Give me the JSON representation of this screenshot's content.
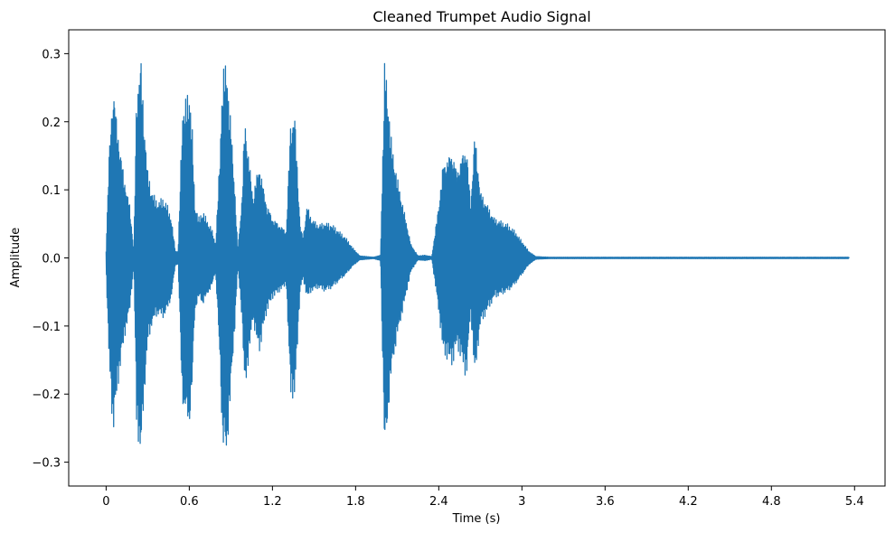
{
  "chart_data": {
    "type": "line",
    "title": "Cleaned Trumpet Audio Signal",
    "xlabel": "Time (s)",
    "ylabel": "Amplitude",
    "xlim": [
      -0.27,
      5.62
    ],
    "ylim": [
      -0.335,
      0.335
    ],
    "xticks": [
      0,
      0.6,
      1.2,
      1.8,
      2.4,
      3,
      3.6,
      4.2,
      4.8,
      5.4
    ],
    "xtick_labels": [
      "0",
      "0.6",
      "1.2",
      "1.8",
      "2.4",
      "3",
      "3.6",
      "4.2",
      "4.8",
      "5.4"
    ],
    "yticks": [
      -0.3,
      -0.2,
      -0.1,
      0.0,
      0.1,
      0.2,
      0.3
    ],
    "ytick_labels": [
      "−0.3",
      "−0.2",
      "−0.1",
      "0.0",
      "0.1",
      "0.2",
      "0.3"
    ],
    "grid": false,
    "color": "#1f77b4",
    "series": [
      {
        "envelope": {
          "time": [
            0.0,
            0.02,
            0.05,
            0.08,
            0.11,
            0.14,
            0.17,
            0.2,
            0.22,
            0.25,
            0.27,
            0.3,
            0.33,
            0.36,
            0.38,
            0.41,
            0.44,
            0.47,
            0.5,
            0.52,
            0.55,
            0.6,
            0.62,
            0.64,
            0.67,
            0.7,
            0.73,
            0.76,
            0.79,
            0.82,
            0.84,
            0.87,
            0.9,
            0.93,
            0.95,
            0.98,
            1.0,
            1.03,
            1.06,
            1.08,
            1.11,
            1.13,
            1.16,
            1.2,
            1.25,
            1.3,
            1.33,
            1.36,
            1.4,
            1.42,
            1.45,
            1.48,
            1.53,
            1.58,
            1.63,
            1.68,
            1.73,
            1.78,
            1.83,
            1.88,
            1.93,
            1.98,
            2.01,
            2.03,
            2.06,
            2.1,
            2.15,
            2.2,
            2.25,
            2.3,
            2.35,
            2.4,
            2.43,
            2.46,
            2.5,
            2.53,
            2.56,
            2.6,
            2.63,
            2.66,
            2.7,
            2.75,
            2.8,
            2.85,
            2.9,
            2.95,
            3.0,
            3.05,
            3.1,
            3.2,
            5.36
          ],
          "upper": [
            0.012,
            0.15,
            0.262,
            0.2,
            0.15,
            0.11,
            0.08,
            0.01,
            0.25,
            0.302,
            0.22,
            0.13,
            0.1,
            0.088,
            0.085,
            0.09,
            0.08,
            0.06,
            0.01,
            0.01,
            0.22,
            0.251,
            0.2,
            0.08,
            0.06,
            0.07,
            0.055,
            0.045,
            0.02,
            0.15,
            0.28,
            0.29,
            0.2,
            0.1,
            0.01,
            0.09,
            0.21,
            0.15,
            0.09,
            0.12,
            0.14,
            0.11,
            0.08,
            0.06,
            0.05,
            0.04,
            0.2,
            0.22,
            0.05,
            0.03,
            0.08,
            0.06,
            0.05,
            0.053,
            0.05,
            0.04,
            0.03,
            0.015,
            0.003,
            0.002,
            0.001,
            0.004,
            0.295,
            0.25,
            0.17,
            0.12,
            0.07,
            0.02,
            0.003,
            0.004,
            0.002,
            0.08,
            0.14,
            0.15,
            0.16,
            0.13,
            0.15,
            0.17,
            0.08,
            0.19,
            0.1,
            0.08,
            0.06,
            0.055,
            0.05,
            0.04,
            0.025,
            0.01,
            0.002,
            0.001,
            0.001
          ],
          "lower": [
            -0.015,
            -0.15,
            -0.262,
            -0.2,
            -0.15,
            -0.11,
            -0.08,
            -0.01,
            -0.25,
            -0.302,
            -0.22,
            -0.13,
            -0.1,
            -0.088,
            -0.085,
            -0.09,
            -0.08,
            -0.06,
            -0.01,
            -0.01,
            -0.22,
            -0.255,
            -0.2,
            -0.08,
            -0.06,
            -0.07,
            -0.055,
            -0.045,
            -0.02,
            -0.15,
            -0.28,
            -0.3,
            -0.2,
            -0.1,
            -0.01,
            -0.09,
            -0.2,
            -0.15,
            -0.09,
            -0.12,
            -0.14,
            -0.11,
            -0.08,
            -0.06,
            -0.05,
            -0.04,
            -0.2,
            -0.213,
            -0.05,
            -0.03,
            -0.06,
            -0.05,
            -0.045,
            -0.05,
            -0.045,
            -0.035,
            -0.025,
            -0.012,
            -0.003,
            -0.002,
            -0.001,
            -0.004,
            -0.3,
            -0.25,
            -0.17,
            -0.12,
            -0.07,
            -0.02,
            -0.003,
            -0.004,
            -0.002,
            -0.08,
            -0.14,
            -0.15,
            -0.16,
            -0.13,
            -0.15,
            -0.18,
            -0.08,
            -0.18,
            -0.1,
            -0.08,
            -0.06,
            -0.055,
            -0.05,
            -0.04,
            -0.025,
            -0.01,
            -0.002,
            -0.001,
            -0.001
          ]
        }
      }
    ]
  }
}
